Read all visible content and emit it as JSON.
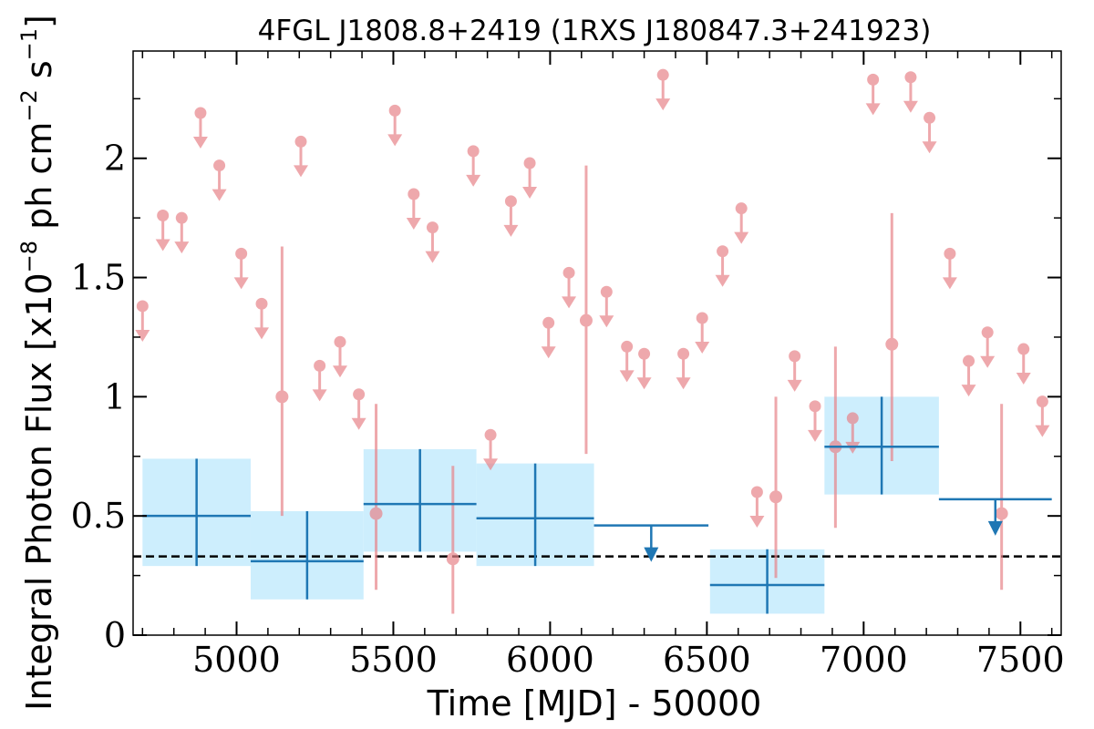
{
  "chart_data": {
    "type": "scatter",
    "title": "4FGL J1808.8+2419 (1RXS J180847.3+241923)",
    "xlabel": "Time [MJD] - 50000",
    "ylabel": {
      "prefix": "Integral Photon Flux [x10",
      "exp1": "−8",
      "mid": " ph cm",
      "exp2": "−2",
      "mid2": " s",
      "exp3": "−1",
      "suffix": "]"
    },
    "xlim": [
      4670,
      7630
    ],
    "ylim": [
      0,
      2.45
    ],
    "xticks": [
      5000,
      5500,
      6000,
      6500,
      7000,
      7500
    ],
    "xtick_labels": [
      "5000",
      "5500",
      "6000",
      "6500",
      "7000",
      "7500"
    ],
    "yticks": [
      0,
      0.5,
      1,
      1.5,
      2
    ],
    "ytick_labels": [
      "0",
      "0.5",
      "1",
      "1.5",
      "2"
    ],
    "x_minor_step": 100,
    "y_minor_step": 0.25,
    "grid": false,
    "reference_line": {
      "y": 0.33,
      "style": "dashed",
      "color": "#000000"
    },
    "colors": {
      "short_bins": "#e8848a",
      "long_bins": "#1f77b4",
      "long_bins_fill": "#cdeefd"
    },
    "series": [
      {
        "role": "short-bin-detections",
        "points": [
          {
            "x": 5145,
            "y": 1.0,
            "ylo": 0.5,
            "yhi": 1.63
          },
          {
            "x": 5445,
            "y": 0.51,
            "ylo": 0.19,
            "yhi": 0.97
          },
          {
            "x": 5690,
            "y": 0.32,
            "ylo": 0.09,
            "yhi": 0.71
          },
          {
            "x": 6115,
            "y": 1.32,
            "ylo": 0.76,
            "yhi": 1.97
          },
          {
            "x": 6720,
            "y": 0.58,
            "ylo": 0.24,
            "yhi": 1.0
          },
          {
            "x": 6910,
            "y": 0.79,
            "ylo": 0.45,
            "yhi": 1.21
          },
          {
            "x": 7090,
            "y": 1.22,
            "ylo": 0.73,
            "yhi": 1.77
          },
          {
            "x": 7440,
            "y": 0.51,
            "ylo": 0.19,
            "yhi": 0.97
          }
        ]
      },
      {
        "role": "short-bin-upper-limits",
        "points": [
          {
            "x": 4700,
            "y": 1.38
          },
          {
            "x": 4765,
            "y": 1.76
          },
          {
            "x": 4825,
            "y": 1.75
          },
          {
            "x": 4885,
            "y": 2.19
          },
          {
            "x": 4945,
            "y": 1.97
          },
          {
            "x": 5015,
            "y": 1.6
          },
          {
            "x": 5080,
            "y": 1.39
          },
          {
            "x": 5205,
            "y": 2.07
          },
          {
            "x": 5265,
            "y": 1.13
          },
          {
            "x": 5330,
            "y": 1.23
          },
          {
            "x": 5390,
            "y": 1.01
          },
          {
            "x": 5505,
            "y": 2.2
          },
          {
            "x": 5565,
            "y": 1.85
          },
          {
            "x": 5625,
            "y": 1.71
          },
          {
            "x": 5755,
            "y": 2.03
          },
          {
            "x": 5810,
            "y": 0.84
          },
          {
            "x": 5875,
            "y": 1.82
          },
          {
            "x": 5935,
            "y": 1.98
          },
          {
            "x": 5995,
            "y": 1.31
          },
          {
            "x": 6060,
            "y": 1.52
          },
          {
            "x": 6180,
            "y": 1.44
          },
          {
            "x": 6245,
            "y": 1.21
          },
          {
            "x": 6300,
            "y": 1.18
          },
          {
            "x": 6360,
            "y": 2.35
          },
          {
            "x": 6425,
            "y": 1.18
          },
          {
            "x": 6485,
            "y": 1.33
          },
          {
            "x": 6550,
            "y": 1.61
          },
          {
            "x": 6610,
            "y": 1.79
          },
          {
            "x": 6660,
            "y": 0.6
          },
          {
            "x": 6780,
            "y": 1.17
          },
          {
            "x": 6845,
            "y": 0.96
          },
          {
            "x": 6965,
            "y": 0.91
          },
          {
            "x": 7030,
            "y": 2.33
          },
          {
            "x": 7150,
            "y": 2.34
          },
          {
            "x": 7210,
            "y": 2.17
          },
          {
            "x": 7275,
            "y": 1.6
          },
          {
            "x": 7335,
            "y": 1.15
          },
          {
            "x": 7395,
            "y": 1.27
          },
          {
            "x": 7510,
            "y": 1.2
          },
          {
            "x": 7570,
            "y": 0.98
          }
        ]
      },
      {
        "role": "long-bin-detections",
        "bins": [
          {
            "x0": 4700,
            "x1": 5045,
            "y": 0.5,
            "ylo": 0.29,
            "yhi": 0.74
          },
          {
            "x0": 5045,
            "x1": 5405,
            "y": 0.31,
            "ylo": 0.15,
            "yhi": 0.52
          },
          {
            "x0": 5405,
            "x1": 5765,
            "y": 0.55,
            "ylo": 0.35,
            "yhi": 0.78
          },
          {
            "x0": 5765,
            "x1": 6140,
            "y": 0.49,
            "ylo": 0.29,
            "yhi": 0.72
          },
          {
            "x0": 6510,
            "x1": 6875,
            "y": 0.21,
            "ylo": 0.09,
            "yhi": 0.36
          },
          {
            "x0": 6875,
            "x1": 7240,
            "y": 0.79,
            "ylo": 0.59,
            "yhi": 1.0
          }
        ]
      },
      {
        "role": "long-bin-upper-limits",
        "bins": [
          {
            "x0": 6140,
            "x1": 6505,
            "y": 0.46
          },
          {
            "x0": 7240,
            "x1": 7600,
            "y": 0.57
          }
        ]
      }
    ]
  }
}
